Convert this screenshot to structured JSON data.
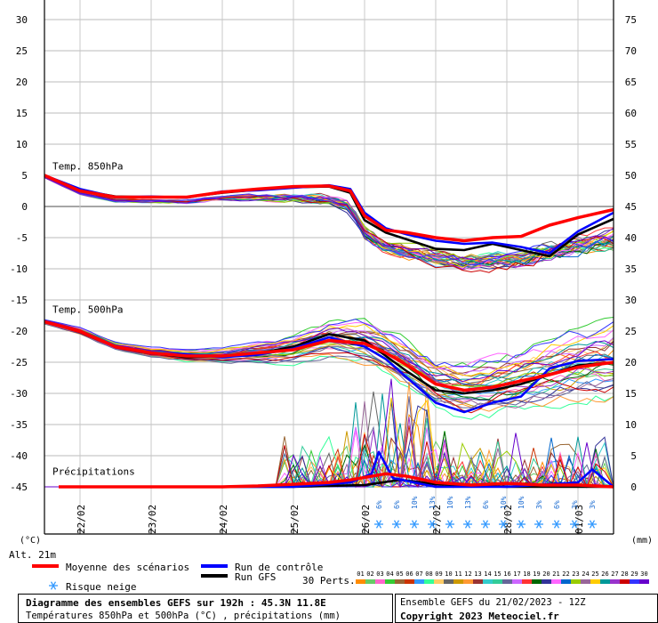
{
  "chart_data": {
    "type": "line",
    "x_unit": "day",
    "x_range": [
      21.5,
      29.5
    ],
    "date_ticks": [
      {
        "x": 22,
        "label": "22/02"
      },
      {
        "x": 23,
        "label": "23/02"
      },
      {
        "x": 24,
        "label": "24/02"
      },
      {
        "x": 25,
        "label": "25/02"
      },
      {
        "x": 26,
        "label": "26/02"
      },
      {
        "x": 27,
        "label": "27/02"
      },
      {
        "x": 28,
        "label": "28/02"
      },
      {
        "x": 29,
        "label": "01/03"
      }
    ],
    "left_axis": {
      "unit_label": "(°C)",
      "ylim": [
        -45,
        30
      ],
      "ticks": [
        30,
        25,
        20,
        15,
        10,
        5,
        0,
        -5,
        -10,
        -15,
        -20,
        -25,
        -30,
        -35,
        -40,
        -45
      ]
    },
    "right_axis": {
      "unit_label": "(mm)",
      "ylim": [
        0,
        75
      ],
      "ticks": [
        75,
        70,
        65,
        60,
        55,
        50,
        45,
        40,
        35,
        30,
        25,
        20,
        15,
        10,
        5,
        0
      ]
    },
    "altitude_label": "Alt. 21m",
    "panels": [
      {
        "label": "Temp. 850hPa",
        "label_at": 6.5
      },
      {
        "label": "Temp. 500hPa",
        "label_at": -16.5
      },
      {
        "label": "Précipitations",
        "label_at": -42.5
      }
    ],
    "series": [
      {
        "name": "Moyenne des scénarios",
        "role": "mean",
        "color": "#ff0000",
        "panel": "t850",
        "points": [
          [
            21.5,
            5
          ],
          [
            22,
            2.5
          ],
          [
            22.5,
            1.5
          ],
          [
            23,
            1.5
          ],
          [
            23.5,
            1.5
          ],
          [
            24,
            2.3
          ],
          [
            24.5,
            2.8
          ],
          [
            25,
            3.2
          ],
          [
            25.5,
            3.3
          ],
          [
            25.8,
            2.5
          ],
          [
            26,
            -1.5
          ],
          [
            26.3,
            -3.8
          ],
          [
            26.6,
            -4.2
          ],
          [
            27,
            -5
          ],
          [
            27.4,
            -5.5
          ],
          [
            27.8,
            -5
          ],
          [
            28.2,
            -4.8
          ],
          [
            28.6,
            -3
          ],
          [
            29,
            -1.8
          ],
          [
            29.5,
            -0.5
          ]
        ]
      },
      {
        "name": "Run de contrôle",
        "role": "control",
        "color": "#0000ff",
        "panel": "t850",
        "points": [
          [
            21.5,
            5
          ],
          [
            22,
            2.8
          ],
          [
            22.5,
            1.5
          ],
          [
            23,
            1.6
          ],
          [
            23.5,
            1.4
          ],
          [
            24,
            2.4
          ],
          [
            24.5,
            2.6
          ],
          [
            25,
            3
          ],
          [
            25.5,
            3.4
          ],
          [
            25.8,
            2.8
          ],
          [
            26,
            -1
          ],
          [
            26.3,
            -3.5
          ],
          [
            26.6,
            -4.5
          ],
          [
            27,
            -5.5
          ],
          [
            27.4,
            -6
          ],
          [
            27.8,
            -5.8
          ],
          [
            28.2,
            -6.5
          ],
          [
            28.6,
            -7.5
          ],
          [
            29,
            -4
          ],
          [
            29.5,
            -1
          ]
        ]
      },
      {
        "name": "Run GFS",
        "role": "gfs",
        "color": "#000000",
        "panel": "t850",
        "points": [
          [
            21.5,
            5
          ],
          [
            22,
            2.6
          ],
          [
            22.5,
            1.6
          ],
          [
            23,
            1.5
          ],
          [
            23.5,
            1.5
          ],
          [
            24,
            2.2
          ],
          [
            24.5,
            2.7
          ],
          [
            25,
            3.1
          ],
          [
            25.5,
            3.2
          ],
          [
            25.8,
            2.2
          ],
          [
            26,
            -2.2
          ],
          [
            26.3,
            -4.2
          ],
          [
            26.6,
            -5.3
          ],
          [
            27,
            -6.8
          ],
          [
            27.4,
            -7
          ],
          [
            27.8,
            -6
          ],
          [
            28.2,
            -7
          ],
          [
            28.6,
            -8
          ],
          [
            29,
            -4.5
          ],
          [
            29.5,
            -2
          ]
        ]
      },
      {
        "name": "Moyenne des scénarios",
        "role": "mean",
        "color": "#ff0000",
        "panel": "t500",
        "points": [
          [
            21.5,
            -18.5
          ],
          [
            22,
            -20
          ],
          [
            22.5,
            -22.5
          ],
          [
            23,
            -23.5
          ],
          [
            23.5,
            -24
          ],
          [
            24,
            -24
          ],
          [
            24.5,
            -23.5
          ],
          [
            25,
            -23
          ],
          [
            25.5,
            -21.5
          ],
          [
            26,
            -22
          ],
          [
            26.3,
            -23.5
          ],
          [
            26.6,
            -25.5
          ],
          [
            27,
            -28.5
          ],
          [
            27.4,
            -29.5
          ],
          [
            27.8,
            -29
          ],
          [
            28.2,
            -28
          ],
          [
            28.6,
            -27
          ],
          [
            29,
            -25.8
          ],
          [
            29.5,
            -25
          ]
        ]
      },
      {
        "name": "Run de contrôle",
        "role": "control",
        "color": "#0000ff",
        "panel": "t500",
        "points": [
          [
            21.5,
            -18.5
          ],
          [
            22,
            -20
          ],
          [
            22.5,
            -22.5
          ],
          [
            23,
            -23.6
          ],
          [
            23.5,
            -23.8
          ],
          [
            24,
            -24.2
          ],
          [
            24.5,
            -23.8
          ],
          [
            25,
            -22.8
          ],
          [
            25.5,
            -21
          ],
          [
            26,
            -22.5
          ],
          [
            26.3,
            -24.5
          ],
          [
            26.6,
            -27.5
          ],
          [
            27,
            -31.5
          ],
          [
            27.4,
            -33
          ],
          [
            27.8,
            -31.5
          ],
          [
            28.2,
            -30.5
          ],
          [
            28.6,
            -26
          ],
          [
            29,
            -24.8
          ],
          [
            29.5,
            -24.5
          ]
        ]
      },
      {
        "name": "Run GFS",
        "role": "gfs",
        "color": "#000000",
        "panel": "t500",
        "points": [
          [
            21.5,
            -18.5
          ],
          [
            22,
            -20
          ],
          [
            22.5,
            -22.5
          ],
          [
            23,
            -23.5
          ],
          [
            23.5,
            -24.2
          ],
          [
            24,
            -24
          ],
          [
            24.5,
            -23.6
          ],
          [
            25,
            -22.5
          ],
          [
            25.5,
            -20.5
          ],
          [
            26,
            -21.5
          ],
          [
            26.3,
            -24
          ],
          [
            26.6,
            -26.5
          ],
          [
            27,
            -29.5
          ],
          [
            27.4,
            -30
          ],
          [
            27.8,
            -29.5
          ],
          [
            28.2,
            -28.5
          ],
          [
            28.6,
            -27
          ],
          [
            29,
            -25.5
          ],
          [
            29.5,
            -25
          ]
        ]
      },
      {
        "name": "Moyenne des scénarios",
        "role": "mean",
        "color": "#ff0000",
        "panel": "precip",
        "points": [
          [
            21.7,
            0
          ],
          [
            23,
            0
          ],
          [
            24,
            0
          ],
          [
            24.5,
            0.1
          ],
          [
            25,
            0.3
          ],
          [
            25.5,
            0.5
          ],
          [
            25.8,
            0.8
          ],
          [
            26.3,
            1.5
          ],
          [
            26.6,
            1.2
          ],
          [
            27,
            0.5
          ],
          [
            27.5,
            0.2
          ],
          [
            28,
            0.4
          ],
          [
            28.5,
            0.2
          ],
          [
            29,
            0.2
          ],
          [
            29.5,
            0
          ]
        ]
      },
      {
        "name": "Run de contrôle",
        "role": "control",
        "color": "#0000ff",
        "panel": "precip",
        "points": [
          [
            21.7,
            0
          ],
          [
            25,
            0
          ],
          [
            25.8,
            0.5
          ],
          [
            26.1,
            1.5
          ],
          [
            26.2,
            4
          ],
          [
            26.4,
            1
          ],
          [
            27,
            0
          ],
          [
            28,
            0
          ],
          [
            29,
            0.5
          ],
          [
            29.2,
            2
          ],
          [
            29.5,
            0
          ]
        ]
      },
      {
        "name": "Run GFS",
        "role": "gfs",
        "color": "#000000",
        "panel": "precip",
        "points": [
          [
            21.7,
            0
          ],
          [
            25,
            0
          ],
          [
            26,
            0.2
          ],
          [
            26.5,
            0.8
          ],
          [
            27,
            0.3
          ],
          [
            28,
            0
          ],
          [
            29.5,
            0
          ]
        ]
      }
    ],
    "snow_risk": [
      {
        "x": 26.2,
        "pct": "6%"
      },
      {
        "x": 26.45,
        "pct": "6%"
      },
      {
        "x": 26.7,
        "pct": "10%"
      },
      {
        "x": 26.95,
        "pct": "13%"
      },
      {
        "x": 27.2,
        "pct": "10%"
      },
      {
        "x": 27.45,
        "pct": "13%"
      },
      {
        "x": 27.7,
        "pct": "6%"
      },
      {
        "x": 27.95,
        "pct": "10%"
      },
      {
        "x": 28.2,
        "pct": "10%"
      },
      {
        "x": 28.45,
        "pct": "3%"
      },
      {
        "x": 28.7,
        "pct": "6%"
      },
      {
        "x": 28.95,
        "pct": "3%"
      },
      {
        "x": 29.2,
        "pct": "3%"
      }
    ]
  },
  "legend": {
    "mean": "Moyenne des scénarios",
    "control": "Run de contrôle",
    "gfs": "Run GFS",
    "snow": "Risque neige",
    "perts": "30 Perts.",
    "member_colors": [
      "#ff8c00",
      "#66cc66",
      "#ff66cc",
      "#33cc33",
      "#996633",
      "#cc3300",
      "#3399ff",
      "#33ff99",
      "#ffcc66",
      "#666666",
      "#cc9900",
      "#ff9933",
      "#993333",
      "#33cccc",
      "#33cc99",
      "#666699",
      "#cc66ff",
      "#ff3333",
      "#006600",
      "#333399",
      "#ff66ff",
      "#0066cc",
      "#99cc00",
      "#996699",
      "#ffcc00",
      "#009999",
      "#9933cc",
      "#cc0000",
      "#3333ff",
      "#6600cc"
    ]
  },
  "footer": {
    "title": "Diagramme des ensembles GEFS sur 192h : 45.3N 11.8E",
    "subtitle": "Températures 850hPa et 500hPa (°C) , précipitations (mm)",
    "run": "Ensemble GEFS du 21/02/2023 - 12Z",
    "copyright": "Copyright 2023 Meteociel.fr"
  }
}
